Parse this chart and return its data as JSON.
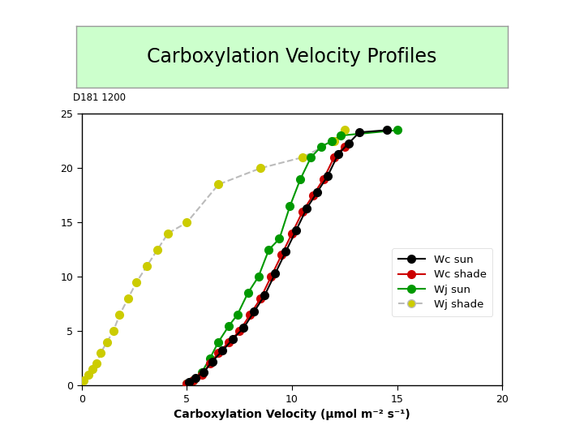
{
  "title": "Carboxylation Velocity Profiles",
  "title_bg": "#ccffcc",
  "xlabel": "Carboxylation Velocity (μmol m⁻² s⁻¹)",
  "plot_label": "D181 1200",
  "xlim": [
    0,
    20
  ],
  "ylim": [
    0,
    25
  ],
  "xticks": [
    0,
    5,
    10,
    15,
    20
  ],
  "yticks": [
    0,
    5,
    10,
    15,
    20,
    25
  ],
  "wc_sun_x": [
    5.1,
    5.4,
    5.8,
    6.2,
    6.7,
    7.2,
    7.7,
    8.2,
    8.7,
    9.2,
    9.7,
    10.2,
    10.7,
    11.2,
    11.7,
    12.2,
    12.7,
    13.2,
    14.5
  ],
  "wc_sun_y": [
    0.3,
    0.7,
    1.2,
    2.2,
    3.2,
    4.3,
    5.3,
    6.8,
    8.3,
    10.3,
    12.3,
    14.3,
    16.3,
    17.8,
    19.3,
    21.3,
    22.3,
    23.3,
    23.5
  ],
  "wc_shade_x": [
    5.0,
    5.3,
    5.7,
    6.1,
    6.5,
    7.0,
    7.5,
    8.0,
    8.5,
    9.0,
    9.5,
    10.0,
    10.5,
    11.0,
    11.5,
    12.0,
    12.5
  ],
  "wc_shade_y": [
    0.2,
    0.5,
    1.0,
    2.0,
    3.0,
    4.0,
    5.0,
    6.5,
    8.0,
    10.0,
    12.0,
    14.0,
    16.0,
    17.5,
    19.0,
    21.0,
    22.0
  ],
  "wj_sun_x": [
    5.0,
    5.3,
    5.7,
    6.1,
    6.5,
    7.0,
    7.4,
    7.9,
    8.4,
    8.9,
    9.4,
    9.9,
    10.4,
    10.9,
    11.4,
    11.9,
    12.3,
    15.0
  ],
  "wj_sun_y": [
    0.2,
    0.5,
    1.2,
    2.5,
    4.0,
    5.5,
    6.5,
    8.5,
    10.0,
    12.5,
    13.5,
    16.5,
    19.0,
    21.0,
    22.0,
    22.5,
    23.0,
    23.5
  ],
  "wj_shade_x": [
    0.1,
    0.3,
    0.5,
    0.7,
    0.9,
    1.2,
    1.5,
    1.8,
    2.2,
    2.6,
    3.1,
    3.6,
    4.1,
    5.0,
    6.5,
    8.5,
    10.5,
    12.0,
    12.5
  ],
  "wj_shade_y": [
    0.5,
    1.0,
    1.5,
    2.0,
    3.0,
    4.0,
    5.0,
    6.5,
    8.0,
    9.5,
    11.0,
    12.5,
    14.0,
    15.0,
    18.5,
    20.0,
    21.0,
    22.5,
    23.5
  ],
  "color_wc_sun": "#000000",
  "color_wc_shade": "#cc0000",
  "color_wj_sun": "#009900",
  "color_wj_shade": "#cccc00",
  "color_wj_shade_line": "#bbbbbb",
  "bg_color": "#ffffff",
  "marker_size": 7
}
